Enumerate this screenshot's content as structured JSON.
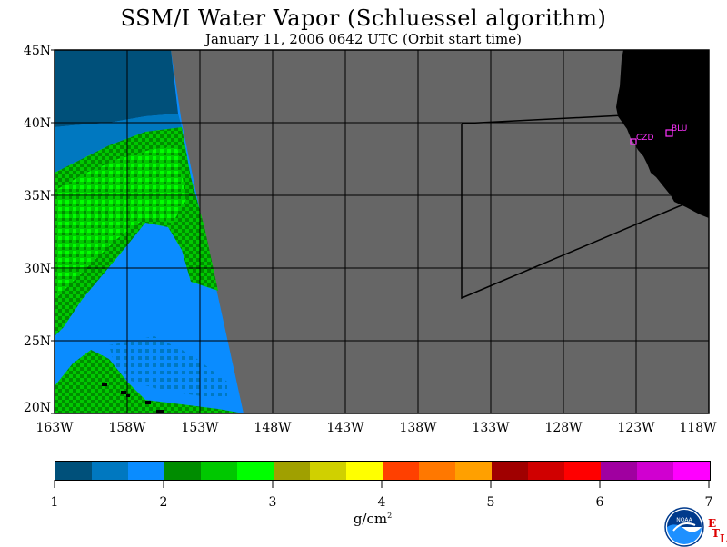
{
  "title": "SSM/I Water Vapor (Schluessel algorithm)",
  "subtitle": "January 11, 2006  0642 UTC  (Orbit start time)",
  "lat_labels": [
    "45N",
    "40N",
    "35N",
    "30N",
    "25N",
    "20N"
  ],
  "lon_labels": [
    "163W",
    "158W",
    "153W",
    "148W",
    "143W",
    "138W",
    "133W",
    "128W",
    "123W",
    "118W"
  ],
  "colorbar": {
    "colors": [
      "#00507a",
      "#0078c0",
      "#0a8cff",
      "#008c00",
      "#00c800",
      "#00ff00",
      "#a0a000",
      "#d0d000",
      "#ffff00",
      "#ff4000",
      "#ff7800",
      "#ffa000",
      "#a00000",
      "#d00000",
      "#ff0000",
      "#a000a0",
      "#d000d0",
      "#ff00ff"
    ],
    "labels": [
      "1",
      "2",
      "3",
      "4",
      "5",
      "6",
      "7"
    ],
    "units": "g/cm",
    "units_exp": "2"
  },
  "stations": [
    {
      "id": "CZD"
    },
    {
      "id": "BLU"
    }
  ],
  "logo": {
    "text": "NOAA",
    "etl_letters": [
      "E",
      "T",
      "L"
    ]
  },
  "colors": {
    "land": "#000000",
    "no_data": "#666666",
    "grid": "#000000",
    "station": "#ff33ff"
  }
}
